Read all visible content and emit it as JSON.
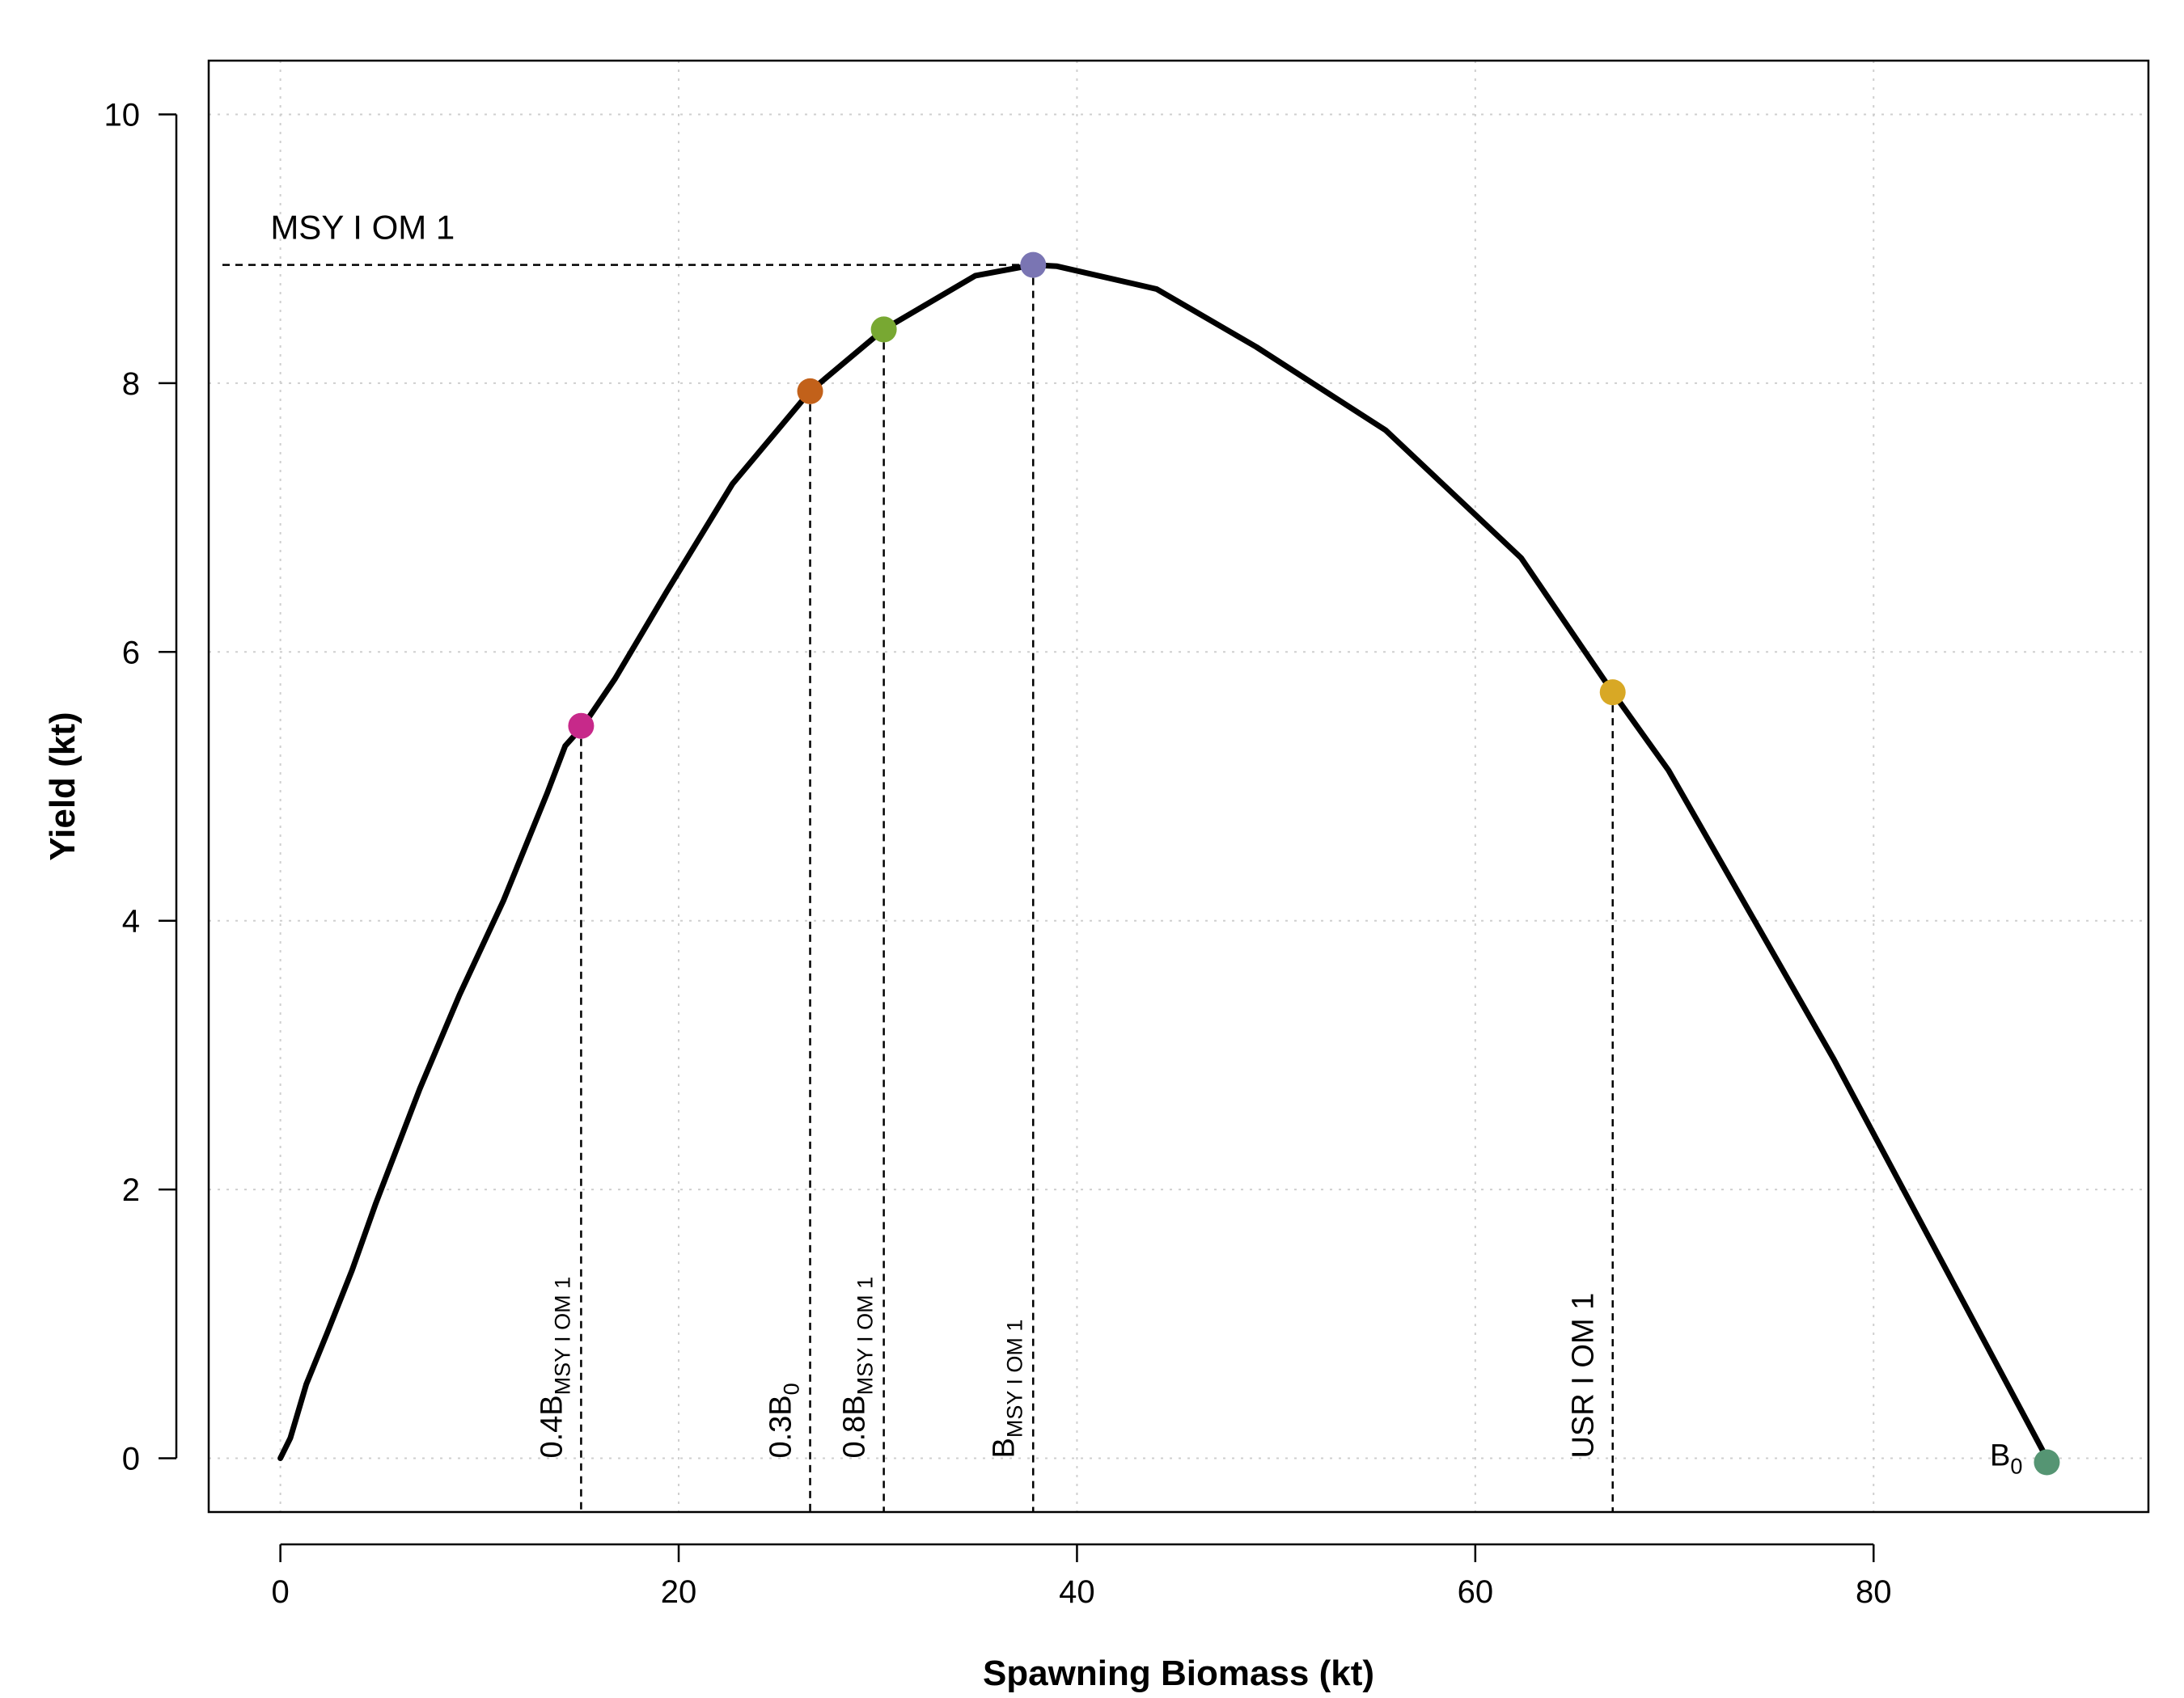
{
  "chart_data": {
    "type": "line",
    "xlabel": "Spawning Biomass (kt)",
    "ylabel": "Yield (kt)",
    "xlim": [
      -3.6,
      93.8
    ],
    "ylim": [
      -0.4,
      10.4
    ],
    "x_ticks": [
      0,
      20,
      40,
      60,
      80
    ],
    "y_ticks": [
      0,
      2,
      4,
      6,
      8,
      10
    ],
    "grid": true,
    "line_color": "#000000",
    "series": [
      {
        "x": [
          0,
          0.5,
          0.8,
          1.3,
          2.4,
          3.6,
          4.8,
          7.0,
          9.0,
          11.2,
          13.4,
          14.3,
          15.2,
          16.8,
          19.4,
          22.7,
          26.6,
          30.3,
          34.9,
          37.8,
          39.0,
          44.0,
          49.0,
          55.5,
          62.3,
          66.9,
          69.7,
          78.0,
          88.7
        ],
        "y": [
          0.0,
          0.15,
          0.3,
          0.55,
          0.95,
          1.4,
          1.9,
          2.75,
          3.45,
          4.15,
          4.95,
          5.3,
          5.45,
          5.8,
          6.45,
          7.25,
          7.94,
          8.4,
          8.8,
          8.88,
          8.87,
          8.7,
          8.27,
          7.65,
          6.7,
          5.7,
          5.12,
          2.97,
          0.0
        ]
      }
    ],
    "reference_points": [
      {
        "x": 15.1,
        "y": 5.45,
        "color": "#c7298a",
        "label_main": "0.4B",
        "label_sub": "MSY I OM 1"
      },
      {
        "x": 26.6,
        "y": 7.94,
        "color": "#c2611a",
        "label_main": "0.3B",
        "label_sub": "0"
      },
      {
        "x": 30.3,
        "y": 8.4,
        "color": "#78a832",
        "label_main": "0.8B",
        "label_sub": "MSY I OM 1"
      },
      {
        "x": 37.8,
        "y": 8.88,
        "color": "#7a75b3",
        "label_main": "B",
        "label_sub": "MSY I OM 1"
      },
      {
        "x": 66.9,
        "y": 5.7,
        "color": "#d8a825",
        "label_main": "USR I OM 1",
        "label_sub": ""
      },
      {
        "x": 88.7,
        "y": -0.03,
        "color": "#559573",
        "label_main": "B",
        "label_sub": "0"
      }
    ],
    "msy_label": "MSY I OM 1",
    "msy_value": 8.88
  }
}
